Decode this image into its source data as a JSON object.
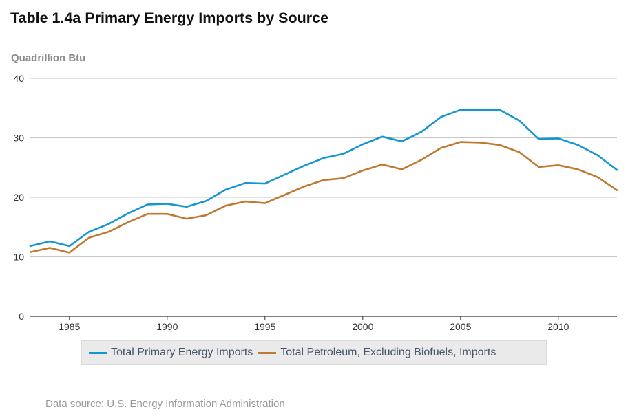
{
  "page": {
    "title": "Table 1.4a Primary Energy Imports by Source",
    "source_note": "Data source: U.S. Energy Information Administration"
  },
  "colors": {
    "series_0": "#1596d1",
    "series_1": "#c07a30",
    "grid": "#c8c8c8",
    "axis": "#333333"
  },
  "chart_data": {
    "type": "line",
    "title": "Table 1.4a Primary Energy Imports by Source",
    "ylabel": "Quadrillion Btu",
    "xlabel": "",
    "xlim": [
      1983,
      2013
    ],
    "ylim": [
      0,
      40
    ],
    "x_ticks": [
      1985,
      1990,
      1995,
      2000,
      2005,
      2010
    ],
    "y_ticks": [
      0,
      10,
      20,
      30,
      40
    ],
    "grid": "horizontal",
    "legend_position": "bottom",
    "x": [
      1983,
      1984,
      1985,
      1986,
      1987,
      1988,
      1989,
      1990,
      1991,
      1992,
      1993,
      1994,
      1995,
      1996,
      1997,
      1998,
      1999,
      2000,
      2001,
      2002,
      2003,
      2004,
      2005,
      2006,
      2007,
      2008,
      2009,
      2010,
      2011,
      2012,
      2013
    ],
    "series": [
      {
        "name": "Total Primary Energy Imports",
        "values": [
          11.8,
          12.6,
          11.8,
          14.2,
          15.5,
          17.3,
          18.8,
          18.9,
          18.4,
          19.4,
          21.3,
          22.4,
          22.3,
          23.8,
          25.3,
          26.6,
          27.3,
          28.9,
          30.2,
          29.4,
          31.0,
          33.5,
          34.7,
          34.7,
          34.7,
          32.9,
          29.8,
          29.9,
          28.8,
          27.1,
          24.6
        ]
      },
      {
        "name": "Total Petroleum, Excluding Biofuels, Imports",
        "values": [
          10.8,
          11.5,
          10.7,
          13.2,
          14.2,
          15.8,
          17.2,
          17.2,
          16.4,
          17.0,
          18.6,
          19.3,
          19.0,
          20.4,
          21.8,
          22.9,
          23.2,
          24.5,
          25.5,
          24.7,
          26.3,
          28.3,
          29.3,
          29.2,
          28.8,
          27.6,
          25.1,
          25.4,
          24.7,
          23.4,
          21.2
        ]
      }
    ]
  }
}
